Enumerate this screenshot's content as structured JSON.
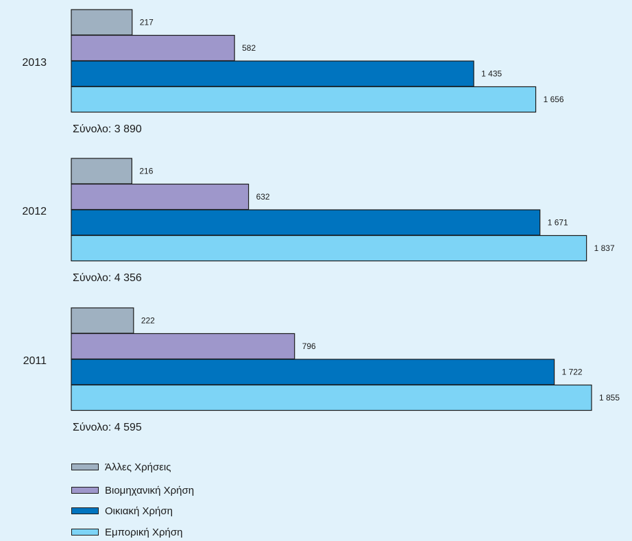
{
  "chart_data": {
    "type": "bar",
    "orientation": "horizontal",
    "categories": [
      "2013",
      "2012",
      "2011"
    ],
    "series": [
      {
        "name": "Άλλες Χρήσεις",
        "color": "#9fb1c1",
        "values": [
          217,
          216,
          222
        ]
      },
      {
        "name": "Βιομηχανική Χρήση",
        "color": "#9e97cb",
        "values": [
          582,
          632,
          796
        ]
      },
      {
        "name": "Οικιακή Χρήση",
        "color": "#0074bf",
        "values": [
          1435,
          1671,
          1722
        ]
      },
      {
        "name": "Εμπορική Χρήση",
        "color": "#7dd4f6",
        "values": [
          1656,
          1837,
          1855
        ]
      }
    ],
    "value_labels": [
      [
        "217",
        "582",
        "1 435",
        "1 656"
      ],
      [
        "216",
        "632",
        "1 671",
        "1 837"
      ],
      [
        "222",
        "796",
        "1 722",
        "1 855"
      ]
    ],
    "totals": [
      "Σύνολο: 3 890",
      "Σύνολο: 4 356",
      "Σύνολο: 4 595"
    ],
    "xlim": [
      0,
      1855
    ],
    "grid": false,
    "axes_visible": false,
    "legend_position": "bottom-left",
    "background": "#e1f2fb"
  }
}
